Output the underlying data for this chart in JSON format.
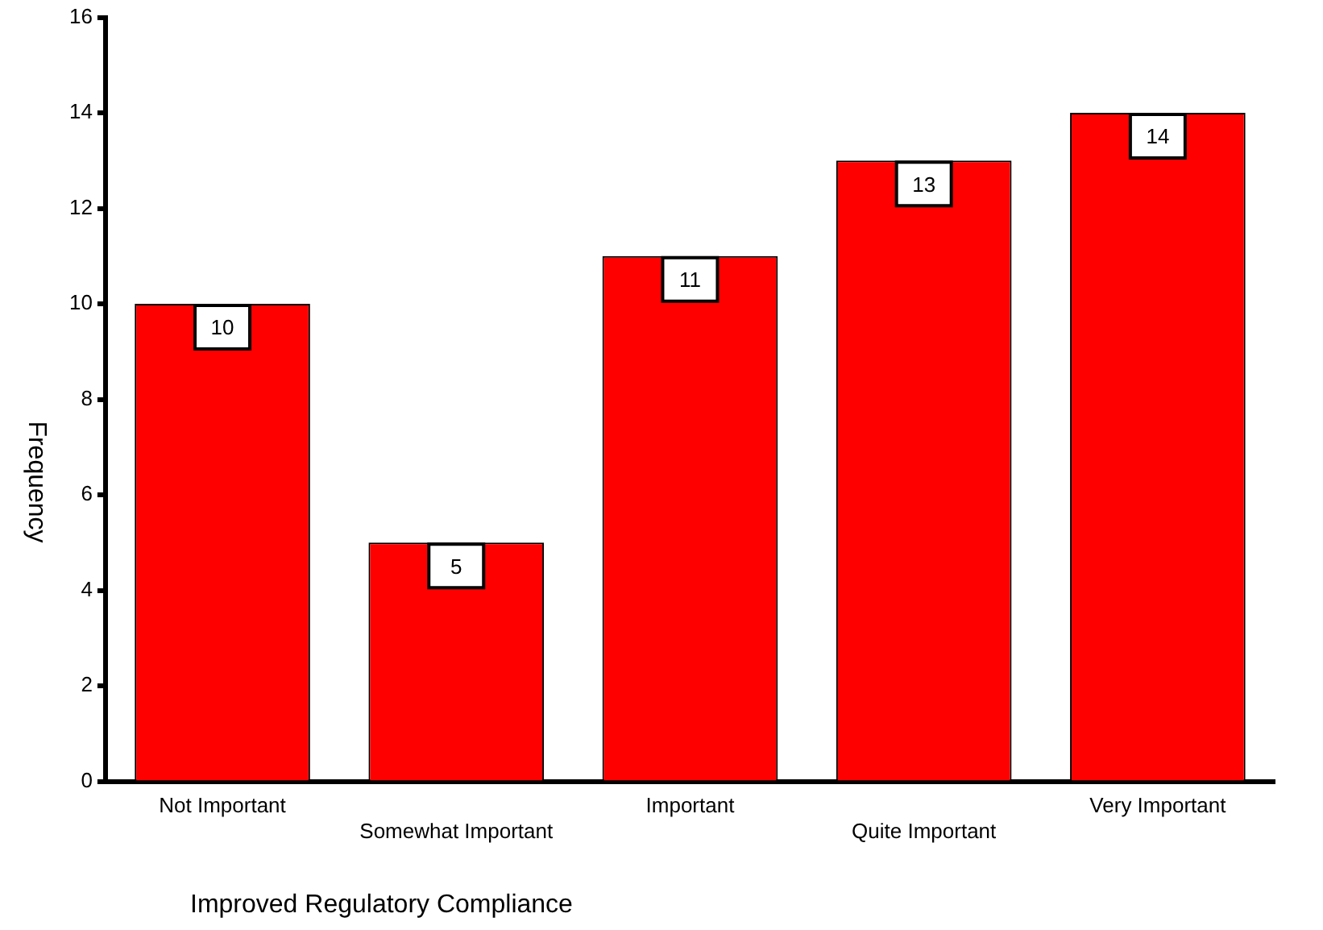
{
  "chart_data": {
    "type": "bar",
    "xlabel": "Improved Regulatory Compliance",
    "ylabel": "Frequency",
    "categories": [
      "Not Important",
      "Somewhat Important",
      "Important",
      "Quite Important",
      "Very Important"
    ],
    "values": [
      10,
      5,
      11,
      13,
      14
    ],
    "color": "#ff0000",
    "ylim": [
      0,
      16
    ],
    "yticks": [
      0,
      2,
      4,
      6,
      8,
      10,
      12,
      14,
      16
    ],
    "grid": false,
    "legend": false,
    "data_labels": true
  }
}
